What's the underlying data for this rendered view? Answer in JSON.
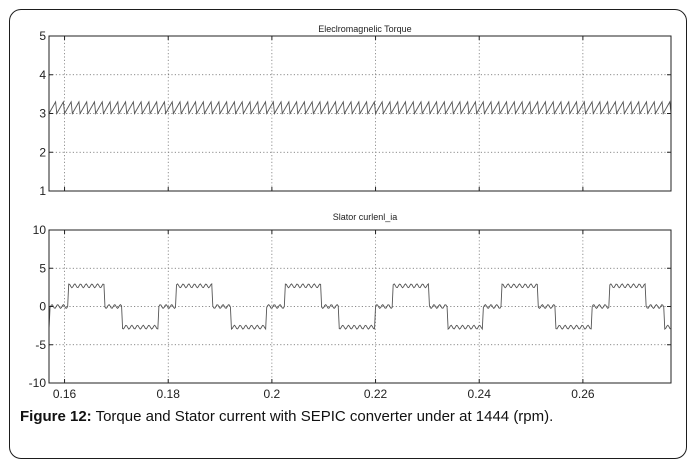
{
  "chart_data": [
    {
      "type": "line",
      "title": "Eleclromagnelic Torque",
      "xlim": [
        0.157,
        0.277
      ],
      "ylim": [
        1,
        5
      ],
      "yticks": [
        1,
        2,
        3,
        4,
        5
      ],
      "xticks": [
        0.16,
        0.18,
        0.2,
        0.22,
        0.24,
        0.26
      ],
      "grid": true,
      "waveform": "sawtooth",
      "series": [
        {
          "min": 3.0,
          "max": 3.3,
          "period": 0.0015
        }
      ]
    },
    {
      "type": "line",
      "title": "Slator curlenl_ia",
      "xlim": [
        0.157,
        0.277
      ],
      "ylim": [
        -10,
        10
      ],
      "yticks": [
        -10,
        -5,
        0,
        5,
        10
      ],
      "xticks": [
        0.16,
        0.18,
        0.2,
        0.22,
        0.24,
        0.26
      ],
      "xtick_labels": [
        "0.16",
        "0.18",
        "0.2",
        "0.22",
        "0.24",
        "0.26"
      ],
      "grid": true,
      "waveform": "six-step",
      "series": [
        {
          "amplitude": 2.7,
          "period": 0.0209,
          "phase": 0.1572
        }
      ]
    }
  ],
  "caption": {
    "label": "Figure 12:",
    "text": " Torque and Stator current with SEPIC converter under at 1444 (rpm)."
  },
  "colors": {
    "line": "#555555",
    "grid": "#666666",
    "axes": "#222222"
  }
}
